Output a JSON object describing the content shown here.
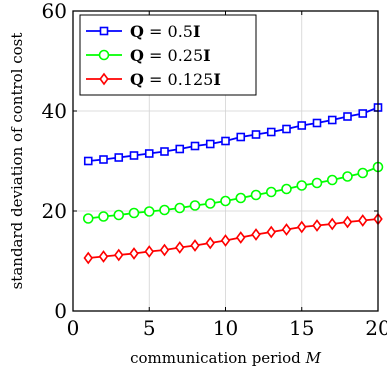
{
  "chart_data": {
    "type": "line",
    "xlabel": "communication period ",
    "xlabel_var": "M",
    "ylabel": "standard deviation of control cost",
    "xlim": [
      0,
      20
    ],
    "ylim": [
      0,
      60
    ],
    "xticks": [
      0,
      5,
      10,
      15,
      20
    ],
    "yticks": [
      0,
      20,
      40,
      60
    ],
    "grid": true,
    "legend_position": "top-left",
    "x": [
      1,
      2,
      3,
      4,
      5,
      6,
      7,
      8,
      9,
      10,
      11,
      12,
      13,
      14,
      15,
      16,
      17,
      18,
      19,
      20
    ],
    "series": [
      {
        "name_bold": "Q",
        "name_eq": " = 0.5",
        "name_bold2": "I",
        "color": "#0000ff",
        "marker": "square",
        "values": [
          30.0,
          30.3,
          30.7,
          31.1,
          31.5,
          31.9,
          32.4,
          33.0,
          33.4,
          34.0,
          34.8,
          35.3,
          35.8,
          36.4,
          37.1,
          37.6,
          38.2,
          38.9,
          39.5,
          40.7
        ]
      },
      {
        "name_bold": "Q",
        "name_eq": " = 0.25",
        "name_bold2": "I",
        "color": "#00ff00",
        "marker": "circle",
        "values": [
          18.5,
          18.9,
          19.2,
          19.6,
          19.9,
          20.2,
          20.6,
          21.1,
          21.5,
          22.0,
          22.6,
          23.2,
          23.8,
          24.4,
          25.1,
          25.6,
          26.2,
          26.9,
          27.6,
          28.8
        ]
      },
      {
        "name_bold": "Q",
        "name_eq": " = 0.125",
        "name_bold2": "I",
        "color": "#ff0000",
        "marker": "diamond",
        "values": [
          10.6,
          10.9,
          11.2,
          11.5,
          11.9,
          12.2,
          12.7,
          13.1,
          13.6,
          14.1,
          14.7,
          15.3,
          15.8,
          16.3,
          16.8,
          17.1,
          17.4,
          17.8,
          18.1,
          18.4
        ]
      }
    ]
  }
}
